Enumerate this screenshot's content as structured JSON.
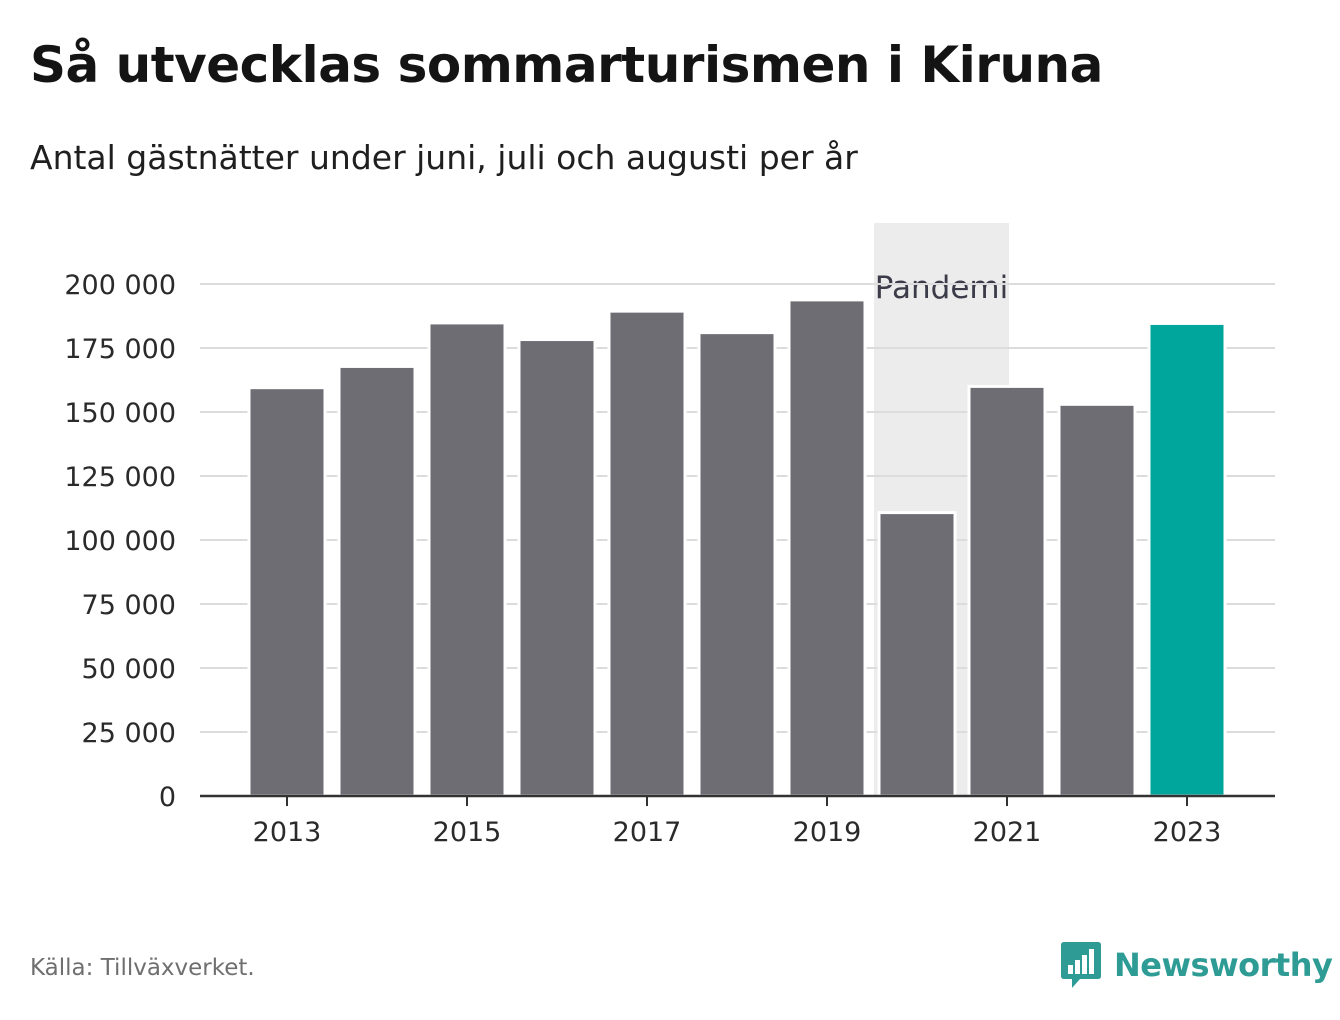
{
  "title": "Så utvecklas sommarturismen i Kiruna",
  "subtitle": "Antal gästnätter under juni, juli och augusti per år",
  "source": "Källa: Tillväxverket.",
  "brand": "Newsworthy",
  "chart_data": {
    "type": "bar",
    "categories": [
      "2013",
      "2014",
      "2015",
      "2016",
      "2017",
      "2018",
      "2019",
      "2020",
      "2021",
      "2022",
      "2023"
    ],
    "values": [
      159500,
      167800,
      184800,
      178300,
      189400,
      181000,
      193800,
      110700,
      160000,
      153000,
      184600
    ],
    "x_tick_labels": [
      "2013",
      "2015",
      "2017",
      "2019",
      "2021",
      "2023"
    ],
    "y_ticks": [
      0,
      25000,
      50000,
      75000,
      100000,
      125000,
      150000,
      175000,
      200000
    ],
    "y_tick_labels": [
      "0",
      "25 000",
      "50 000",
      "75 000",
      "100 000",
      "125 000",
      "150 000",
      "175 000",
      "200 000"
    ],
    "ylim": [
      0,
      200000
    ],
    "xlabel": "",
    "ylabel": "",
    "grid": true,
    "highlight_category": "2023",
    "annotation": {
      "label": "Pandemi",
      "from": "2020",
      "to": "2021"
    },
    "colors": {
      "bar": "#6e6d73",
      "highlight": "#00a69c",
      "band": "#ececec",
      "grid": "#dcdcdc",
      "axis": "#333333",
      "brand": "#2e9c95"
    }
  }
}
